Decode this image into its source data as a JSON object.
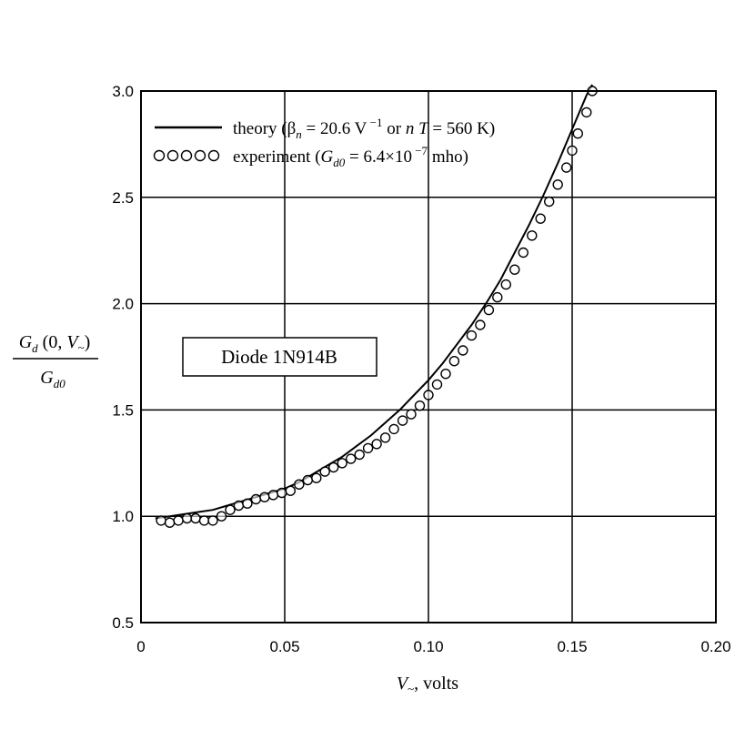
{
  "chart_data": {
    "type": "line",
    "xlim": [
      0,
      0.2
    ],
    "ylim": [
      0.5,
      3.0
    ],
    "x_ticks": [
      "0",
      "0.05",
      "0.10",
      "0.15",
      "0.20"
    ],
    "y_ticks": [
      "0.5",
      "1.0",
      "1.5",
      "2.0",
      "2.5",
      "3.0"
    ],
    "grid": true,
    "legend_position": "top-left",
    "ylabel": {
      "numerator": {
        "G": "G",
        "sub": "d",
        "args": " (0, ",
        "V": "V",
        "tilde": "~",
        "close": ")"
      },
      "denominator": {
        "G": "G",
        "sub": "d0"
      }
    },
    "xlabel": {
      "V": "V",
      "tilde": "~",
      "unit": ", volts"
    },
    "annotation": "Diode 1N914B",
    "legend": [
      {
        "marker": "line",
        "text": {
          "pre": "theory (",
          "beta": "β",
          "beta_sub": "n",
          "mid": " = 20.6 V",
          "sup": " −1",
          "or": " or ",
          "n": "n",
          "T": " T",
          "post": " = 560 K)"
        }
      },
      {
        "marker": "circles",
        "text": {
          "pre": "experiment (",
          "G": "G",
          "G_sub": "d0",
          "mid": " = 6.4×10",
          "sup": " −7",
          "post": " mho)"
        }
      }
    ],
    "series": [
      {
        "name": "theory",
        "style": "line",
        "color": "#000000",
        "x": [
          0.005,
          0.01,
          0.015,
          0.02,
          0.025,
          0.03,
          0.035,
          0.04,
          0.045,
          0.05,
          0.055,
          0.06,
          0.065,
          0.07,
          0.075,
          0.08,
          0.085,
          0.09,
          0.095,
          0.1,
          0.105,
          0.11,
          0.115,
          0.12,
          0.125,
          0.13,
          0.135,
          0.14,
          0.145,
          0.15,
          0.155,
          0.157
        ],
        "y": [
          0.99,
          1.0,
          1.01,
          1.02,
          1.03,
          1.05,
          1.07,
          1.09,
          1.11,
          1.13,
          1.16,
          1.2,
          1.24,
          1.28,
          1.33,
          1.38,
          1.44,
          1.5,
          1.57,
          1.64,
          1.72,
          1.81,
          1.9,
          2.0,
          2.11,
          2.24,
          2.37,
          2.51,
          2.66,
          2.82,
          2.98,
          3.03
        ]
      },
      {
        "name": "experiment",
        "style": "scatter",
        "color": "#000000",
        "x": [
          0.007,
          0.01,
          0.013,
          0.016,
          0.019,
          0.022,
          0.025,
          0.028,
          0.031,
          0.034,
          0.037,
          0.04,
          0.043,
          0.046,
          0.049,
          0.052,
          0.055,
          0.058,
          0.061,
          0.064,
          0.067,
          0.07,
          0.073,
          0.076,
          0.079,
          0.082,
          0.085,
          0.088,
          0.091,
          0.094,
          0.097,
          0.1,
          0.103,
          0.106,
          0.109,
          0.112,
          0.115,
          0.118,
          0.121,
          0.124,
          0.127,
          0.13,
          0.133,
          0.136,
          0.139,
          0.142,
          0.145,
          0.148,
          0.15,
          0.152,
          0.155,
          0.157
        ],
        "y": [
          0.98,
          0.97,
          0.98,
          0.99,
          0.99,
          0.98,
          0.98,
          1.0,
          1.03,
          1.05,
          1.06,
          1.08,
          1.09,
          1.1,
          1.11,
          1.12,
          1.15,
          1.17,
          1.18,
          1.21,
          1.23,
          1.25,
          1.27,
          1.29,
          1.32,
          1.34,
          1.37,
          1.41,
          1.45,
          1.48,
          1.52,
          1.57,
          1.62,
          1.67,
          1.73,
          1.78,
          1.85,
          1.9,
          1.97,
          2.03,
          2.09,
          2.16,
          2.24,
          2.32,
          2.4,
          2.48,
          2.56,
          2.64,
          2.72,
          2.8,
          2.9,
          3.0
        ]
      }
    ]
  }
}
